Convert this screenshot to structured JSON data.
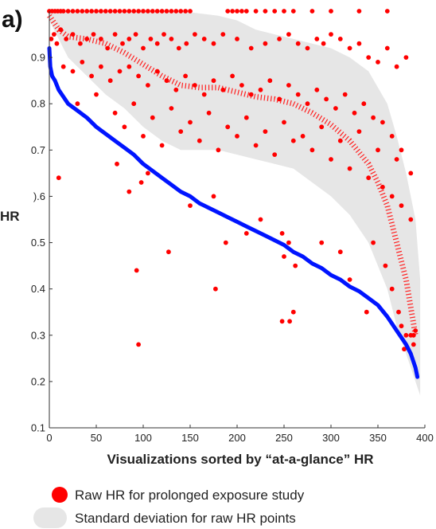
{
  "chart_data": {
    "type": "scatter",
    "panel_label": "a)",
    "xlabel": "Visualizations sorted by “at-a-glance” HR",
    "ylabel": "HR",
    "xlim": [
      0,
      400
    ],
    "ylim": [
      0.1,
      1.0
    ],
    "x_ticks": [
      0,
      50,
      100,
      150,
      200,
      250,
      300,
      350,
      400
    ],
    "x_tick_labels": [
      "0",
      "50",
      "100",
      "150",
      "200",
      "250",
      "300",
      "350",
      "400"
    ],
    "y_ticks": [
      0.1,
      0.2,
      0.3,
      0.4,
      0.5,
      0.6,
      0.7,
      0.8,
      0.9
    ],
    "y_tick_labels": [
      "0.1",
      "0.2",
      "0.3",
      "0.4",
      "0.5",
      ").6",
      "0.7",
      "0.8",
      "0.9"
    ],
    "grid": false,
    "legend": {
      "placement": "bottom",
      "entries": [
        "Raw HR for prolonged exposure study",
        "Standard deviation for raw HR points"
      ]
    },
    "colors": {
      "raw_points": "#ff0000",
      "trend_line": "#ff2020",
      "glance_line": "#0014ff",
      "sd_band": "#e6e6e6",
      "axis": "#333333"
    },
    "series": [
      {
        "kind": "line",
        "x": [
          0,
          1,
          3,
          6,
          10,
          15,
          20,
          30,
          40,
          50,
          60,
          70,
          80,
          90,
          100,
          110,
          120,
          130,
          140,
          150,
          160,
          170,
          180,
          190,
          200,
          210,
          220,
          230,
          240,
          250,
          260,
          270,
          280,
          290,
          300,
          310,
          320,
          330,
          340,
          350,
          360,
          370,
          380,
          385,
          390,
          392
        ],
        "y": [
          0.92,
          0.88,
          0.86,
          0.85,
          0.83,
          0.815,
          0.8,
          0.785,
          0.77,
          0.75,
          0.735,
          0.72,
          0.705,
          0.69,
          0.67,
          0.655,
          0.64,
          0.625,
          0.61,
          0.6,
          0.585,
          0.575,
          0.565,
          0.555,
          0.545,
          0.535,
          0.525,
          0.515,
          0.505,
          0.495,
          0.48,
          0.47,
          0.455,
          0.445,
          0.43,
          0.42,
          0.405,
          0.395,
          0.38,
          0.365,
          0.34,
          0.31,
          0.28,
          0.26,
          0.23,
          0.21
        ]
      },
      {
        "kind": "trend",
        "x": [
          0,
          10,
          20,
          40,
          60,
          80,
          100,
          120,
          140,
          160,
          180,
          200,
          220,
          240,
          260,
          280,
          300,
          320,
          340,
          350,
          360,
          370,
          380,
          385,
          390
        ],
        "y": [
          0.99,
          0.96,
          0.945,
          0.94,
          0.93,
          0.91,
          0.885,
          0.86,
          0.84,
          0.835,
          0.835,
          0.825,
          0.815,
          0.81,
          0.8,
          0.78,
          0.755,
          0.72,
          0.67,
          0.63,
          0.58,
          0.5,
          0.42,
          0.36,
          0.3
        ]
      },
      {
        "kind": "band",
        "x": [
          0,
          20,
          40,
          60,
          80,
          100,
          120,
          140,
          160,
          180,
          200,
          220,
          240,
          260,
          280,
          300,
          320,
          340,
          360,
          370,
          380,
          390,
          395
        ],
        "upper": [
          1.0,
          1.0,
          1.0,
          1.0,
          1.0,
          1.0,
          1.0,
          1.0,
          0.995,
          0.99,
          0.98,
          0.96,
          0.95,
          0.94,
          0.93,
          0.92,
          0.9,
          0.87,
          0.8,
          0.73,
          0.65,
          0.55,
          0.42
        ],
        "lower": [
          0.98,
          0.9,
          0.86,
          0.82,
          0.79,
          0.75,
          0.72,
          0.7,
          0.7,
          0.7,
          0.69,
          0.68,
          0.67,
          0.66,
          0.63,
          0.6,
          0.56,
          0.5,
          0.4,
          0.32,
          0.26,
          0.2,
          0.17
        ]
      },
      {
        "kind": "scatter",
        "x": [
          0,
          3,
          6,
          9,
          12,
          15,
          20,
          25,
          30,
          35,
          40,
          45,
          50,
          55,
          60,
          65,
          70,
          75,
          80,
          85,
          90,
          95,
          100,
          105,
          110,
          115,
          120,
          125,
          130,
          135,
          140,
          145,
          150,
          190,
          195,
          200,
          205,
          210,
          220,
          230,
          240,
          250,
          260,
          280,
          300,
          330,
          360,
          2,
          5,
          8,
          12,
          18,
          25,
          33,
          40,
          47,
          55,
          62,
          70,
          78,
          85,
          92,
          100,
          108,
          115,
          122,
          130,
          138,
          146,
          155,
          165,
          175,
          185,
          200,
          215,
          230,
          245,
          255,
          265,
          275,
          285,
          292,
          300,
          310,
          320,
          330,
          340,
          350,
          360,
          370,
          380,
          15,
          25,
          35,
          45,
          55,
          65,
          75,
          85,
          95,
          105,
          115,
          125,
          135,
          145,
          155,
          165,
          175,
          185,
          195,
          205,
          215,
          225,
          235,
          245,
          255,
          265,
          275,
          285,
          295,
          305,
          315,
          325,
          335,
          345,
          355,
          365,
          375,
          30,
          50,
          70,
          90,
          110,
          130,
          150,
          170,
          190,
          210,
          230,
          250,
          270,
          290,
          310,
          330,
          350,
          370,
          385,
          80,
          100,
          120,
          140,
          160,
          180,
          200,
          220,
          240,
          260,
          280,
          300,
          320,
          340,
          355,
          365,
          375,
          385,
          10,
          72,
          85,
          98,
          105,
          150,
          175,
          188,
          210,
          225,
          248,
          250,
          255,
          262,
          290,
          310,
          320,
          345,
          358,
          365,
          372,
          375,
          380,
          388,
          93,
          95,
          127,
          177,
          260,
          248,
          256,
          338,
          385,
          378,
          388,
          390
        ],
        "y": [
          1.0,
          1.0,
          1.0,
          1.0,
          1.0,
          1.0,
          1.0,
          1.0,
          1.0,
          1.0,
          1.0,
          1.0,
          1.0,
          1.0,
          1.0,
          1.0,
          1.0,
          1.0,
          1.0,
          1.0,
          1.0,
          1.0,
          1.0,
          1.0,
          1.0,
          1.0,
          1.0,
          1.0,
          1.0,
          1.0,
          1.0,
          1.0,
          1.0,
          1.0,
          1.0,
          1.0,
          1.0,
          1.0,
          1.0,
          1.0,
          1.0,
          1.0,
          1.0,
          1.0,
          1.0,
          1.0,
          1.0,
          0.94,
          0.95,
          0.93,
          0.96,
          0.94,
          0.95,
          0.93,
          0.94,
          0.95,
          0.94,
          0.92,
          0.95,
          0.93,
          0.94,
          0.95,
          0.92,
          0.94,
          0.93,
          0.95,
          0.94,
          0.92,
          0.93,
          0.95,
          0.94,
          0.93,
          0.95,
          0.94,
          0.92,
          0.93,
          0.94,
          0.95,
          0.93,
          0.92,
          0.94,
          0.93,
          0.95,
          0.94,
          0.92,
          0.93,
          0.9,
          0.89,
          0.92,
          0.88,
          0.9,
          0.88,
          0.87,
          0.89,
          0.86,
          0.88,
          0.85,
          0.87,
          0.88,
          0.86,
          0.84,
          0.87,
          0.85,
          0.83,
          0.86,
          0.84,
          0.82,
          0.85,
          0.83,
          0.86,
          0.84,
          0.82,
          0.83,
          0.85,
          0.81,
          0.84,
          0.82,
          0.8,
          0.83,
          0.81,
          0.79,
          0.82,
          0.78,
          0.8,
          0.77,
          0.76,
          0.73,
          0.7,
          0.8,
          0.82,
          0.78,
          0.8,
          0.77,
          0.79,
          0.76,
          0.78,
          0.75,
          0.77,
          0.74,
          0.76,
          0.73,
          0.75,
          0.72,
          0.74,
          0.7,
          0.68,
          0.65,
          0.75,
          0.73,
          0.71,
          0.74,
          0.72,
          0.7,
          0.73,
          0.71,
          0.69,
          0.72,
          0.7,
          0.68,
          0.66,
          0.64,
          0.62,
          0.6,
          0.58,
          0.55,
          0.64,
          0.67,
          0.61,
          0.63,
          0.65,
          0.58,
          0.6,
          0.5,
          0.52,
          0.55,
          0.52,
          0.47,
          0.5,
          0.45,
          0.5,
          0.48,
          0.42,
          0.5,
          0.45,
          0.4,
          0.35,
          0.32,
          0.3,
          0.28,
          0.44,
          0.28,
          0.48,
          0.4,
          0.35,
          0.33,
          0.33,
          0.35,
          0.3,
          0.27,
          0.3,
          0.31
        ]
      }
    ]
  }
}
